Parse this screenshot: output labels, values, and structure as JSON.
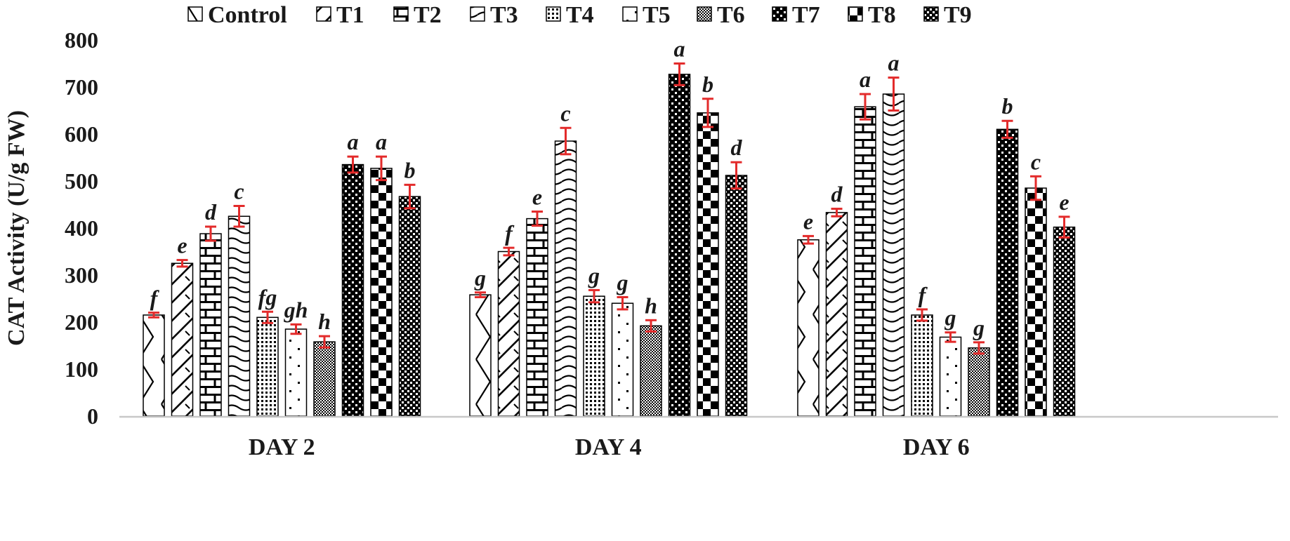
{
  "chart_data": {
    "type": "bar",
    "title": "",
    "xlabel": "",
    "ylabel": "CAT Activity (U/g FW)",
    "ylim": [
      0,
      800
    ],
    "yticks": [
      0,
      100,
      200,
      300,
      400,
      500,
      600,
      700,
      800
    ],
    "grid": false,
    "legend_position": "top",
    "categories": [
      "DAY 2",
      "DAY 4",
      "DAY 6"
    ],
    "series": [
      {
        "name": "Control",
        "values": [
          215,
          258,
          375
        ],
        "errors": [
          5,
          5,
          8
        ],
        "letters": [
          "f",
          "g",
          "e"
        ]
      },
      {
        "name": "T1",
        "values": [
          325,
          350,
          433
        ],
        "errors": [
          7,
          8,
          8
        ],
        "letters": [
          "e",
          "f",
          "d"
        ]
      },
      {
        "name": "T2",
        "values": [
          388,
          420,
          658
        ],
        "errors": [
          15,
          15,
          27
        ],
        "letters": [
          "d",
          "e",
          "a"
        ]
      },
      {
        "name": "T3",
        "values": [
          425,
          585,
          685
        ],
        "errors": [
          22,
          28,
          35
        ],
        "letters": [
          "c",
          "c",
          "a"
        ]
      },
      {
        "name": "T4",
        "values": [
          210,
          255,
          215
        ],
        "errors": [
          12,
          13,
          12
        ],
        "letters": [
          "fg",
          "g",
          "f"
        ]
      },
      {
        "name": "T5",
        "values": [
          185,
          240,
          168
        ],
        "errors": [
          10,
          13,
          10
        ],
        "letters": [
          "gh",
          "g",
          "g"
        ]
      },
      {
        "name": "T6",
        "values": [
          158,
          192,
          145
        ],
        "errors": [
          12,
          12,
          12
        ],
        "letters": [
          "h",
          "h",
          "g"
        ]
      },
      {
        "name": "T7",
        "values": [
          535,
          727,
          610
        ],
        "errors": [
          17,
          23,
          18
        ],
        "letters": [
          "a",
          "a",
          "b"
        ]
      },
      {
        "name": "T8",
        "values": [
          527,
          645,
          485
        ],
        "errors": [
          25,
          30,
          25
        ],
        "letters": [
          "a",
          "b",
          "c"
        ]
      },
      {
        "name": "T9",
        "values": [
          467,
          512,
          402
        ],
        "errors": [
          25,
          28,
          22
        ],
        "letters": [
          "b",
          "d",
          "e"
        ]
      }
    ],
    "colors": {
      "bar_fill": "#000000",
      "bar_bg": "#ffffff",
      "error_bar": "#e32b2b",
      "axis": "#c8c8c8",
      "text": "#1a1a1a"
    }
  }
}
